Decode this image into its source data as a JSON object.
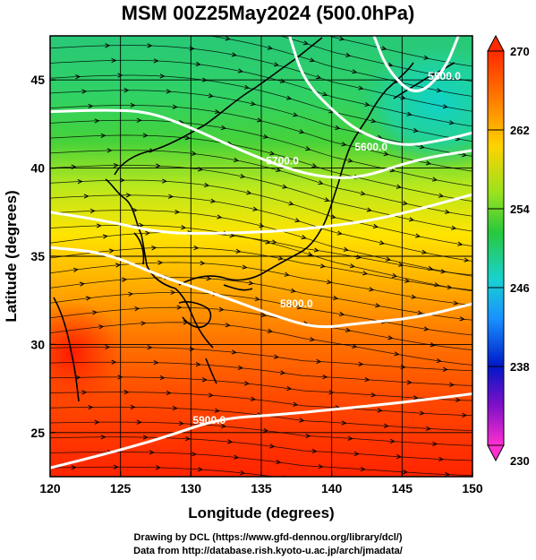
{
  "title": "MSM 00Z25May2024 (500.0hPa)",
  "axes": {
    "xlabel": "Longitude (degrees)",
    "ylabel": "Latitude  (degrees)",
    "x_range": [
      120,
      150
    ],
    "y_range": [
      22.5,
      47.5
    ],
    "x_ticks": [
      "120",
      "125",
      "130",
      "135",
      "140",
      "145",
      "150"
    ],
    "y_ticks": [
      "25",
      "30",
      "35",
      "40",
      "45"
    ]
  },
  "colorbar": {
    "labels": [
      "270",
      "262",
      "254",
      "246",
      "238",
      "230"
    ],
    "range": [
      230,
      270
    ],
    "colors": {
      "top": "#ff2a00",
      "mid_high": "#ffd200",
      "mid": "#28c83c",
      "mid_low": "#18d2d2",
      "low": "#0018c8",
      "bottom": "#ff30d0"
    }
  },
  "contours": [
    {
      "label": "5900.0",
      "lat_points": [
        [
          120,
          23.0
        ],
        [
          124,
          23.8
        ],
        [
          128,
          24.7
        ],
        [
          132,
          25.8
        ],
        [
          136,
          26.0
        ],
        [
          140,
          26.3
        ],
        [
          145,
          26.7
        ],
        [
          150,
          27.2
        ]
      ],
      "label_at": [
        131.3,
        25.5
      ]
    },
    {
      "label": "5800.0",
      "lat_points": [
        [
          120,
          35.5
        ],
        [
          124,
          35.2
        ],
        [
          128,
          33.8
        ],
        [
          132,
          32.8
        ],
        [
          136,
          31.6
        ],
        [
          139,
          30.9
        ],
        [
          142,
          31.2
        ],
        [
          146,
          31.5
        ],
        [
          150,
          32.3
        ]
      ],
      "label_at": [
        137.5,
        32.1
      ]
    },
    {
      "label": "",
      "lat_points": [
        [
          120,
          37.5
        ],
        [
          124,
          37.0
        ],
        [
          128,
          36.3
        ],
        [
          132,
          36.3
        ],
        [
          136,
          36.4
        ],
        [
          140,
          36.7
        ],
        [
          144,
          37.2
        ],
        [
          150,
          38.5
        ]
      ],
      "label_at": null
    },
    {
      "label": "5700.0",
      "lat_points": [
        [
          120,
          43.2
        ],
        [
          124,
          43.3
        ],
        [
          127,
          43.2
        ],
        [
          130,
          42.3
        ],
        [
          133,
          41.2
        ],
        [
          136,
          40.2
        ],
        [
          139,
          39.5
        ],
        [
          142,
          39.4
        ],
        [
          146,
          40.5
        ],
        [
          150,
          41.0
        ]
      ],
      "label_at": [
        136.5,
        40.2
      ]
    },
    {
      "label": "5600.0",
      "lat_points": [
        [
          137,
          47.5
        ],
        [
          138,
          45.0
        ],
        [
          140,
          43.3
        ],
        [
          142,
          42.0
        ],
        [
          145,
          41.2
        ],
        [
          148,
          41.6
        ],
        [
          150,
          42.0
        ]
      ],
      "label_at": [
        142.8,
        41.0
      ]
    },
    {
      "label": "5500.0",
      "lat_points": [
        [
          143,
          47.5
        ],
        [
          144,
          45.5
        ],
        [
          146,
          44.0
        ],
        [
          148,
          45.5
        ],
        [
          149,
          47.5
        ]
      ],
      "label_at": [
        148.0,
        45.0
      ]
    }
  ],
  "credits": {
    "line1": "Drawing by DCL (https://www.gfd-dennou.org/library/dcl/)",
    "line2": "Data from http://database.rish.kyoto-u.ac.jp/arch/jmadata/"
  }
}
